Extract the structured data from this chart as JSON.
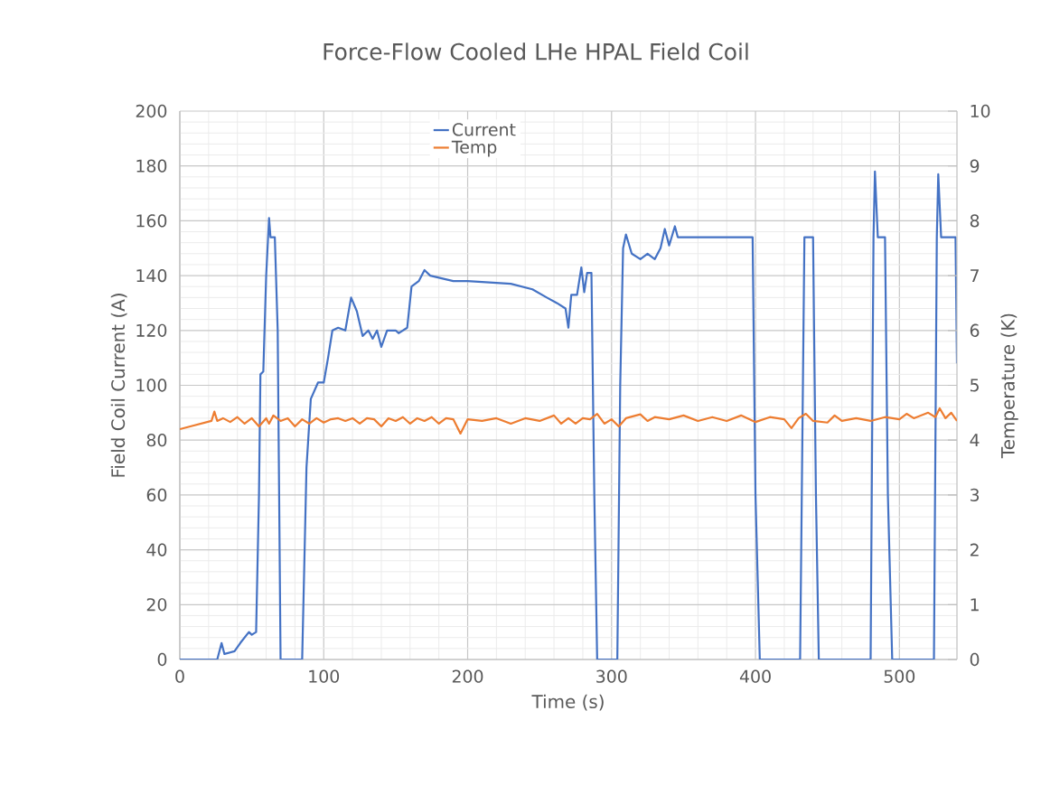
{
  "chart_data": {
    "type": "line",
    "title": "Force-Flow Cooled LHe HPAL Field Coil",
    "xlabel": "Time (s)",
    "ylabel": "Field Coil Current (A)",
    "y2label": "Temperature (K)",
    "xlim": [
      0,
      540
    ],
    "xticks": [
      0,
      100,
      200,
      300,
      400,
      500
    ],
    "ylim": [
      0,
      200
    ],
    "yticks": [
      0,
      20,
      40,
      60,
      80,
      100,
      120,
      140,
      160,
      180,
      200
    ],
    "y2lim": [
      0,
      10
    ],
    "y2ticks": [
      0,
      1,
      2,
      3,
      4,
      5,
      6,
      7,
      8,
      9,
      10
    ],
    "grid": true,
    "legend": "top",
    "marker": "none",
    "line_style": "solid",
    "series": [
      {
        "name": "Current",
        "color": "#4472c4",
        "x": [
          0,
          26,
          29,
          31,
          38,
          42,
          48,
          50,
          53,
          55,
          56,
          58,
          60,
          62,
          63,
          66,
          68,
          70,
          85,
          88,
          91,
          96,
          100,
          103,
          106,
          110,
          115,
          119,
          123,
          127,
          131,
          134,
          137,
          140,
          144,
          150,
          152,
          158,
          161,
          166,
          170,
          174,
          190,
          200,
          230,
          245,
          255,
          262,
          268,
          270,
          272,
          276,
          279,
          281,
          283,
          286,
          288,
          290,
          304,
          306,
          308,
          310,
          314,
          320,
          325,
          330,
          334,
          337,
          340,
          344,
          346,
          370,
          398,
          400,
          403,
          431,
          434,
          440,
          442,
          444,
          480,
          482,
          483,
          485,
          490,
          492,
          495,
          524,
          526,
          527,
          529,
          539,
          540
        ],
        "values": [
          0,
          0,
          6,
          2,
          3,
          6,
          10,
          9,
          10,
          60,
          104,
          105,
          140,
          161,
          154,
          154,
          120,
          0,
          0,
          70,
          95,
          101,
          101,
          110,
          120,
          121,
          120,
          132,
          127,
          118,
          120,
          117,
          120,
          114,
          120,
          120,
          119,
          121,
          136,
          138,
          142,
          140,
          138,
          138,
          137,
          135,
          132,
          130,
          128,
          121,
          133,
          133,
          143,
          134,
          141,
          141,
          60,
          0,
          0,
          100,
          150,
          155,
          148,
          146,
          148,
          146,
          150,
          157,
          151,
          158,
          154,
          154,
          154,
          60,
          0,
          0,
          154,
          154,
          60,
          0,
          0,
          154,
          178,
          154,
          154,
          60,
          0,
          0,
          154,
          177,
          154,
          154,
          108
        ]
      },
      {
        "name": "Temp",
        "color": "#ed7d31",
        "axis": "y2",
        "x": [
          0,
          22,
          24,
          26,
          30,
          35,
          40,
          45,
          50,
          55,
          60,
          62,
          65,
          70,
          75,
          80,
          85,
          90,
          95,
          100,
          105,
          110,
          115,
          120,
          125,
          130,
          135,
          140,
          145,
          150,
          155,
          160,
          165,
          170,
          175,
          180,
          185,
          190,
          195,
          200,
          210,
          220,
          230,
          240,
          250,
          260,
          265,
          270,
          275,
          280,
          285,
          290,
          295,
          300,
          305,
          310,
          320,
          325,
          330,
          340,
          350,
          360,
          370,
          380,
          390,
          400,
          410,
          420,
          425,
          430,
          435,
          440,
          450,
          455,
          460,
          470,
          480,
          490,
          500,
          505,
          510,
          520,
          525,
          528,
          532,
          536,
          540
        ],
        "values": [
          4.2,
          4.35,
          4.52,
          4.35,
          4.4,
          4.33,
          4.42,
          4.3,
          4.4,
          4.25,
          4.4,
          4.3,
          4.45,
          4.35,
          4.4,
          4.25,
          4.38,
          4.3,
          4.4,
          4.32,
          4.38,
          4.4,
          4.35,
          4.4,
          4.3,
          4.4,
          4.38,
          4.25,
          4.4,
          4.35,
          4.42,
          4.3,
          4.4,
          4.35,
          4.42,
          4.3,
          4.4,
          4.38,
          4.12,
          4.38,
          4.35,
          4.4,
          4.3,
          4.4,
          4.35,
          4.45,
          4.3,
          4.4,
          4.3,
          4.4,
          4.38,
          4.48,
          4.3,
          4.38,
          4.25,
          4.4,
          4.47,
          4.35,
          4.42,
          4.38,
          4.45,
          4.35,
          4.42,
          4.35,
          4.45,
          4.33,
          4.42,
          4.38,
          4.22,
          4.4,
          4.48,
          4.35,
          4.32,
          4.45,
          4.35,
          4.4,
          4.35,
          4.42,
          4.38,
          4.48,
          4.4,
          4.5,
          4.42,
          4.58,
          4.4,
          4.5,
          4.35
        ]
      }
    ]
  }
}
